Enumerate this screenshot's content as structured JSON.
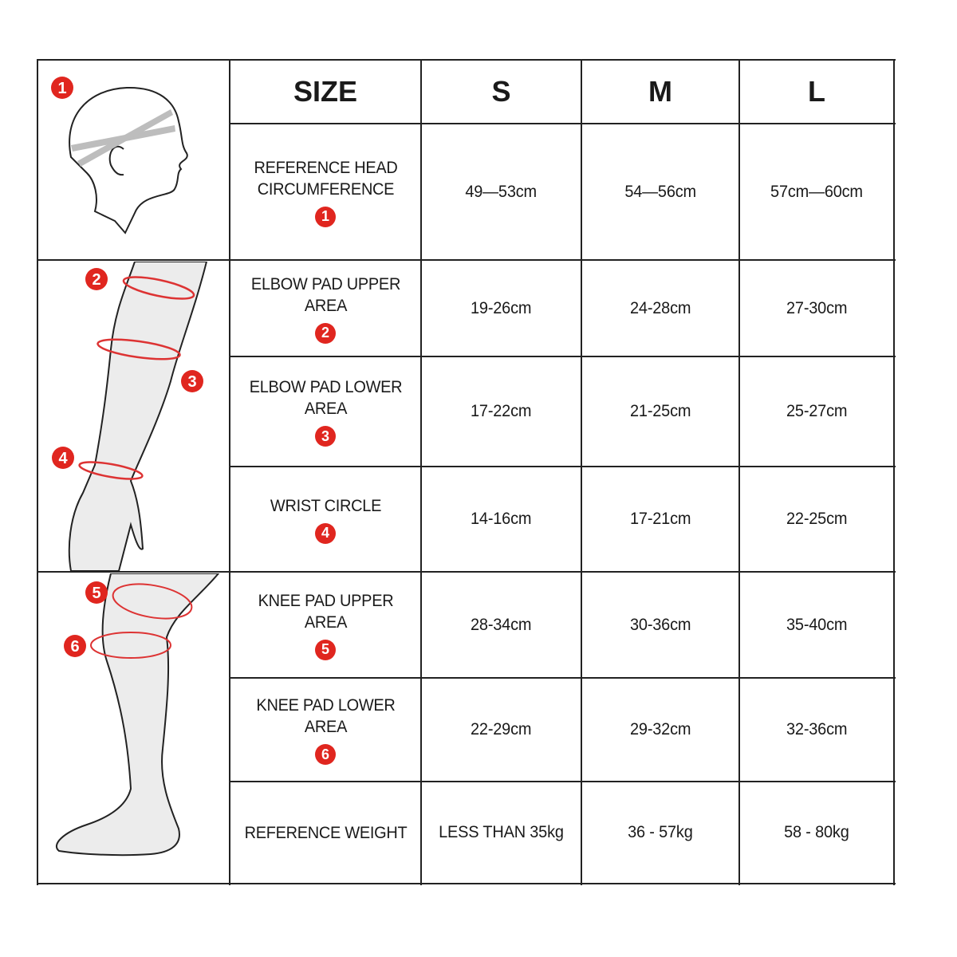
{
  "colors": {
    "badge": "#e0261f",
    "line": "#222222",
    "limb_fill": "#ececec"
  },
  "header": {
    "size_label": "SIZE",
    "sizes": [
      "S",
      "M",
      "L"
    ]
  },
  "rows": [
    {
      "label": "REFERENCE HEAD CIRCUMFERENCE",
      "badge": "1",
      "values": [
        "49—53cm",
        "54—56cm",
        "57cm—60cm"
      ]
    },
    {
      "label": "ELBOW PAD UPPER AREA",
      "badge": "2",
      "values": [
        "19-26cm",
        "24-28cm",
        "27-30cm"
      ]
    },
    {
      "label": "ELBOW PAD LOWER AREA",
      "badge": "3",
      "values": [
        "17-22cm",
        "21-25cm",
        "25-27cm"
      ]
    },
    {
      "label": "WRIST CIRCLE",
      "badge": "4",
      "values": [
        "14-16cm",
        "17-21cm",
        "22-25cm"
      ]
    },
    {
      "label": "KNEE PAD UPPER AREA",
      "badge": "5",
      "values": [
        "28-34cm",
        "30-36cm",
        "35-40cm"
      ]
    },
    {
      "label": "KNEE PAD LOWER AREA",
      "badge": "6",
      "values": [
        "22-29cm",
        "29-32cm",
        "32-36cm"
      ]
    },
    {
      "label": "REFERENCE WEIGHT",
      "badge": null,
      "values": [
        "LESS THAN 35kg",
        "36 - 57kg",
        "58 - 80kg"
      ]
    }
  ],
  "illustrations": {
    "head_badges": [
      "1"
    ],
    "arm_badges": [
      "2",
      "3",
      "4"
    ],
    "leg_badges": [
      "5",
      "6"
    ]
  }
}
